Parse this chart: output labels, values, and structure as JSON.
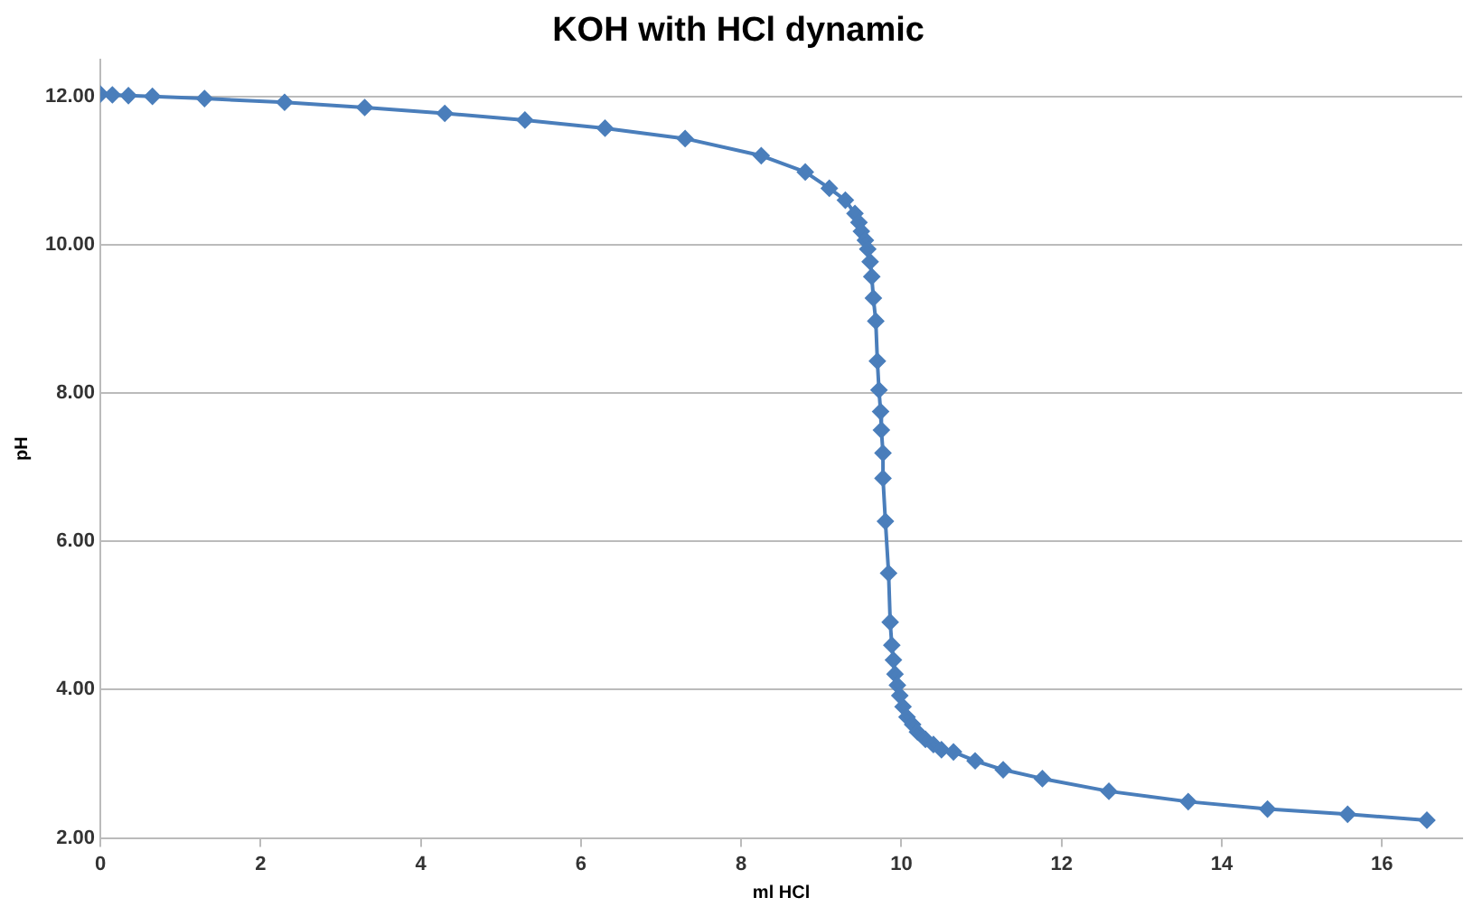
{
  "chart_data": {
    "type": "line",
    "title": "KOH with HCl dynamic",
    "xlabel": "ml HCl",
    "ylabel": "pH",
    "x": [
      0,
      0.15,
      0.35,
      0.65,
      1.3,
      2.3,
      3.3,
      4.3,
      5.3,
      6.3,
      7.3,
      8.25,
      8.8,
      9.1,
      9.3,
      9.42,
      9.47,
      9.5,
      9.55,
      9.58,
      9.61,
      9.63,
      9.65,
      9.68,
      9.7,
      9.72,
      9.74,
      9.75,
      9.77,
      9.77,
      9.8,
      9.84,
      9.86,
      9.88,
      9.9,
      9.92,
      9.95,
      9.98,
      10.02,
      10.07,
      10.14,
      10.2,
      10.3,
      10.4,
      10.5,
      10.65,
      10.92,
      11.27,
      11.76,
      12.59,
      13.58,
      14.57,
      15.57,
      16.56
    ],
    "series": [
      {
        "color": "#4a7ebb",
        "values": [
          12.03,
          12.02,
          12.01,
          12.0,
          11.97,
          11.92,
          11.85,
          11.77,
          11.68,
          11.57,
          11.43,
          11.2,
          10.98,
          10.76,
          10.6,
          10.42,
          10.3,
          10.18,
          10.06,
          9.94,
          9.77,
          9.57,
          9.28,
          8.97,
          8.43,
          8.04,
          7.75,
          7.5,
          7.19,
          6.85,
          6.27,
          5.57,
          4.91,
          4.6,
          4.4,
          4.21,
          4.06,
          3.92,
          3.77,
          3.63,
          3.53,
          3.43,
          3.33,
          3.26,
          3.19,
          3.16,
          3.04,
          2.92,
          2.8,
          2.63,
          2.49,
          2.39,
          2.32,
          2.24
        ]
      }
    ],
    "xlim": [
      0,
      17
    ],
    "xticks": [
      0,
      2,
      4,
      6,
      8,
      10,
      12,
      14,
      16
    ],
    "ylim": [
      2,
      12.5
    ],
    "yticks": [
      {
        "value": 2,
        "label": "2.00"
      },
      {
        "value": 4,
        "label": "4.00"
      },
      {
        "value": 6,
        "label": "6.00"
      },
      {
        "value": 8,
        "label": "8.00"
      },
      {
        "value": 10,
        "label": "10.00"
      },
      {
        "value": 12,
        "label": "12.00"
      }
    ],
    "grid": "y",
    "marker": "diamond",
    "line_style": "solid",
    "legend": false
  }
}
